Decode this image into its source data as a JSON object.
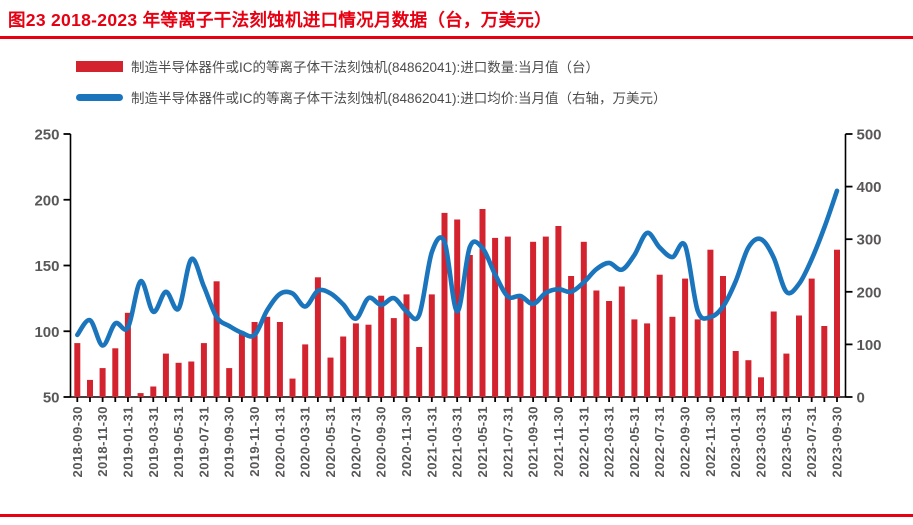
{
  "header": {
    "title": "图23  2018-2023 年等离子干法刻蚀机进口情况月数据（台，万美元）",
    "accent_color": "#e60012"
  },
  "legend": {
    "items": [
      {
        "swatch": "bar",
        "color": "#d2232f",
        "label": "制造半导体器件或IC的等离子体干法刻蚀机(84862041):进口数量:当月值（台）"
      },
      {
        "swatch": "line",
        "color": "#1b75bc",
        "label": "制造半导体器件或IC的等离子体干法刻蚀机(84862041):进口均价:当月值（右轴，万美元）"
      }
    ]
  },
  "chart_data": {
    "type": "bar",
    "title": "2018-2023 年等离子干法刻蚀机进口情况月数据",
    "xlabel": "",
    "ylabel_left": "进口数量:当月值（台）",
    "ylabel_right": "进口均价:当月值（万美元）",
    "grid": false,
    "legend_position": "top-left",
    "categories": [
      "2018-09-30",
      "2018-10-31",
      "2018-11-30",
      "2018-12-31",
      "2019-01-31",
      "2019-02-28",
      "2019-03-31",
      "2019-04-30",
      "2019-05-31",
      "2019-06-30",
      "2019-07-31",
      "2019-08-31",
      "2019-09-30",
      "2019-10-31",
      "2019-11-30",
      "2019-12-31",
      "2020-01-31",
      "2020-02-29",
      "2020-03-31",
      "2020-04-30",
      "2020-05-31",
      "2020-06-30",
      "2020-07-31",
      "2020-08-31",
      "2020-09-30",
      "2020-10-31",
      "2020-11-30",
      "2020-12-31",
      "2021-01-31",
      "2021-02-28",
      "2021-03-31",
      "2021-04-30",
      "2021-05-31",
      "2021-06-30",
      "2021-07-31",
      "2021-08-31",
      "2021-09-30",
      "2021-10-31",
      "2021-11-30",
      "2021-12-31",
      "2022-01-31",
      "2022-02-28",
      "2022-03-31",
      "2022-04-30",
      "2022-05-31",
      "2022-06-30",
      "2022-07-31",
      "2022-08-31",
      "2022-09-30",
      "2022-10-31",
      "2022-11-30",
      "2022-12-31",
      "2023-01-31",
      "2023-02-28",
      "2023-03-31",
      "2023-04-30",
      "2023-05-31",
      "2023-06-30",
      "2023-07-31",
      "2023-08-31",
      "2023-09-30"
    ],
    "x_tick_every": 2,
    "series": [
      {
        "name": "制造半导体器件或IC的等离子体干法刻蚀机(84862041):进口数量:当月值（台）",
        "type": "bar",
        "axis": "left",
        "color": "#d2232f",
        "values": [
          91,
          63,
          72,
          87,
          114,
          53,
          58,
          83,
          76,
          77,
          91,
          138,
          72,
          98,
          107,
          111,
          107,
          64,
          90,
          141,
          80,
          96,
          106,
          105,
          127,
          110,
          128,
          88,
          128,
          190,
          185,
          158,
          193,
          171,
          172,
          127,
          168,
          172,
          180,
          142,
          168,
          131,
          123,
          134,
          109,
          106,
          143,
          111,
          140,
          109,
          162,
          142,
          85,
          78,
          65,
          115,
          83,
          112,
          140,
          104,
          162
        ]
      },
      {
        "name": "制造半导体器件或IC的等离子体干法刻蚀机(84862041):进口均价:当月值（右轴，万美元）",
        "type": "line",
        "axis": "right",
        "color": "#1b75bc",
        "values": [
          118,
          146,
          98,
          140,
          132,
          220,
          162,
          200,
          168,
          262,
          210,
          152,
          135,
          122,
          118,
          165,
          196,
          197,
          172,
          202,
          197,
          176,
          149,
          188,
          175,
          188,
          163,
          156,
          275,
          295,
          163,
          285,
          283,
          233,
          191,
          192,
          177,
          198,
          205,
          200,
          218,
          243,
          255,
          242,
          270,
          312,
          284,
          266,
          288,
          164,
          152,
          172,
          220,
          284,
          300,
          265,
          200,
          215,
          262,
          322,
          392
        ]
      }
    ],
    "left_axis": {
      "min": 50,
      "max": 250,
      "ticks": [
        50,
        100,
        150,
        200,
        250
      ]
    },
    "right_axis": {
      "min": 0,
      "max": 500,
      "ticks": [
        0,
        100,
        200,
        300,
        400,
        500
      ]
    }
  }
}
